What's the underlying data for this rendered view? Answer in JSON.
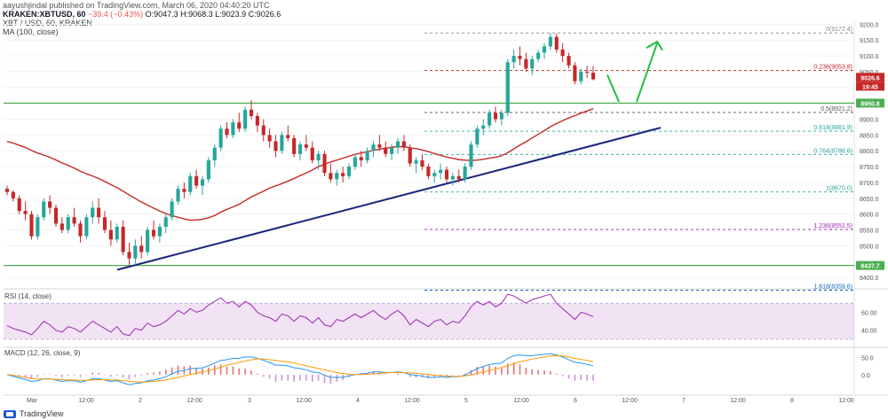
{
  "header": {
    "publisher": "aayushjindal published on TradingView.com, March 06, 2020 04:40:20 UTC",
    "symbol": "KRAKEN:XBTUSD, 60",
    "change": "−39.4 (−0.43%)",
    "ohlc": "O:9047.3 H:9068.3 L:9023.9 C:9026.6",
    "series_name": "XBT / USD, 60, KRAKEN",
    "ma_label": "MA (100, close)"
  },
  "rsi_label": "RSI (14, close)",
  "macd_label": "MACD (12, 26, close, 9)",
  "footer_brand": "TradingView",
  "colors": {
    "up": "#26a69a",
    "down": "#c62828",
    "ma": "#c62828",
    "trendline": "#1a237e",
    "support": "#4caf50",
    "rsi_line": "#9c27b0",
    "rsi_band": "#e1bee7",
    "macd_line": "#2196f3",
    "signal_line": "#ff9800",
    "arrow": "#1fbf3f"
  },
  "chart_data": {
    "type": "candlestick",
    "y_ticks": [
      "9200.0",
      "9150.0",
      "9100.0",
      "9050.0",
      "9000.0",
      "8900.0",
      "8850.0",
      "8800.0",
      "8750.0",
      "8700.0",
      "8650.0",
      "8600.0",
      "8550.0",
      "8500.0",
      "8400.0"
    ],
    "x_ticks": [
      "Mar",
      "12:00",
      "2",
      "12:00",
      "3",
      "12:00",
      "4",
      "12:00",
      "5",
      "12:00",
      "6",
      "12:00",
      "7",
      "12:00",
      "8",
      "12:00"
    ],
    "price_badges": [
      {
        "text": "8950.8",
        "color": "#4caf50",
        "value": 8950.8
      },
      {
        "text": "9026.6",
        "color": "#c62828",
        "value": 9026.6
      },
      {
        "text": "19:45",
        "color": "#c62828",
        "value": 9000
      },
      {
        "text": "8437.7",
        "color": "#4caf50",
        "value": 8437.7
      }
    ],
    "support_levels": [
      8950.8,
      8437.7
    ],
    "fib_levels": [
      {
        "label": "0(9172.4)",
        "value": 9172.4,
        "color": "#888888"
      },
      {
        "label": "0.236(9053.8)",
        "value": 9053.8,
        "color": "#c62828"
      },
      {
        "label": "0.5(8921.2)",
        "value": 8921.2,
        "color": "#555555"
      },
      {
        "label": "0.618(8861.9)",
        "value": 8861.9,
        "color": "#26a69a"
      },
      {
        "label": "0.764(8788.6)",
        "value": 8788.6,
        "color": "#26a69a"
      },
      {
        "label": "1(8670.0)",
        "value": 8670.0,
        "color": "#26a69a"
      },
      {
        "label": "1.236(8551.5)",
        "value": 8551.5,
        "color": "#9c27b0"
      },
      {
        "label": "1.618(8359.6)",
        "value": 8359.6,
        "color": "#1565c0"
      }
    ],
    "candles": [
      [
        8680,
        8690,
        8660,
        8670
      ],
      [
        8670,
        8675,
        8640,
        8650
      ],
      [
        8650,
        8660,
        8600,
        8610
      ],
      [
        8610,
        8640,
        8580,
        8600
      ],
      [
        8600,
        8610,
        8520,
        8530
      ],
      [
        8530,
        8600,
        8520,
        8590
      ],
      [
        8590,
        8650,
        8580,
        8640
      ],
      [
        8640,
        8660,
        8600,
        8620
      ],
      [
        8620,
        8630,
        8560,
        8570
      ],
      [
        8570,
        8590,
        8540,
        8550
      ],
      [
        8550,
        8600,
        8540,
        8590
      ],
      [
        8590,
        8620,
        8560,
        8570
      ],
      [
        8570,
        8580,
        8510,
        8530
      ],
      [
        8530,
        8600,
        8520,
        8590
      ],
      [
        8590,
        8640,
        8570,
        8620
      ],
      [
        8620,
        8650,
        8570,
        8590
      ],
      [
        8590,
        8610,
        8540,
        8550
      ],
      [
        8550,
        8580,
        8500,
        8520
      ],
      [
        8520,
        8570,
        8510,
        8560
      ],
      [
        8560,
        8580,
        8470,
        8480
      ],
      [
        8480,
        8510,
        8440,
        8460
      ],
      [
        8460,
        8520,
        8440,
        8500
      ],
      [
        8500,
        8530,
        8460,
        8480
      ],
      [
        8480,
        8560,
        8470,
        8550
      ],
      [
        8550,
        8580,
        8520,
        8530
      ],
      [
        8530,
        8570,
        8510,
        8560
      ],
      [
        8560,
        8600,
        8540,
        8590
      ],
      [
        8590,
        8650,
        8580,
        8640
      ],
      [
        8640,
        8690,
        8630,
        8680
      ],
      [
        8680,
        8700,
        8650,
        8670
      ],
      [
        8670,
        8730,
        8660,
        8720
      ],
      [
        8720,
        8740,
        8680,
        8690
      ],
      [
        8690,
        8720,
        8660,
        8710
      ],
      [
        8710,
        8780,
        8700,
        8770
      ],
      [
        8770,
        8820,
        8750,
        8810
      ],
      [
        8810,
        8880,
        8800,
        8870
      ],
      [
        8870,
        8890,
        8840,
        8850
      ],
      [
        8850,
        8900,
        8840,
        8890
      ],
      [
        8890,
        8920,
        8860,
        8870
      ],
      [
        8870,
        8940,
        8860,
        8930
      ],
      [
        8930,
        8960,
        8900,
        8910
      ],
      [
        8910,
        8920,
        8860,
        8880
      ],
      [
        8880,
        8900,
        8830,
        8850
      ],
      [
        8850,
        8870,
        8810,
        8830
      ],
      [
        8830,
        8850,
        8780,
        8800
      ],
      [
        8800,
        8860,
        8790,
        8850
      ],
      [
        8850,
        8880,
        8830,
        8840
      ],
      [
        8840,
        8850,
        8780,
        8790
      ],
      [
        8790,
        8830,
        8770,
        8820
      ],
      [
        8820,
        8850,
        8800,
        8810
      ],
      [
        8810,
        8830,
        8760,
        8770
      ],
      [
        8770,
        8800,
        8740,
        8790
      ],
      [
        8790,
        8800,
        8720,
        8730
      ],
      [
        8730,
        8760,
        8700,
        8710
      ],
      [
        8710,
        8740,
        8690,
        8730
      ],
      [
        8730,
        8750,
        8700,
        8720
      ],
      [
        8720,
        8760,
        8710,
        8750
      ],
      [
        8750,
        8790,
        8740,
        8780
      ],
      [
        8780,
        8800,
        8750,
        8770
      ],
      [
        8770,
        8810,
        8760,
        8800
      ],
      [
        8800,
        8830,
        8780,
        8820
      ],
      [
        8820,
        8850,
        8800,
        8810
      ],
      [
        8810,
        8830,
        8780,
        8790
      ],
      [
        8790,
        8820,
        8770,
        8810
      ],
      [
        8810,
        8840,
        8790,
        8830
      ],
      [
        8830,
        8850,
        8800,
        8810
      ],
      [
        8810,
        8820,
        8750,
        8760
      ],
      [
        8760,
        8780,
        8730,
        8770
      ],
      [
        8770,
        8790,
        8740,
        8750
      ],
      [
        8750,
        8760,
        8710,
        8720
      ],
      [
        8720,
        8740,
        8700,
        8730
      ],
      [
        8730,
        8760,
        8710,
        8740
      ],
      [
        8740,
        8750,
        8700,
        8710
      ],
      [
        8710,
        8730,
        8690,
        8720
      ],
      [
        8720,
        8740,
        8700,
        8710
      ],
      [
        8710,
        8760,
        8700,
        8750
      ],
      [
        8750,
        8830,
        8740,
        8820
      ],
      [
        8820,
        8880,
        8810,
        8870
      ],
      [
        8870,
        8900,
        8850,
        8880
      ],
      [
        8880,
        8930,
        8870,
        8920
      ],
      [
        8920,
        8940,
        8890,
        8900
      ],
      [
        8900,
        8930,
        8880,
        8920
      ],
      [
        8920,
        9090,
        8910,
        9080
      ],
      [
        9080,
        9120,
        9060,
        9100
      ],
      [
        9100,
        9130,
        9070,
        9090
      ],
      [
        9090,
        9110,
        9050,
        9060
      ],
      [
        9060,
        9100,
        9040,
        9090
      ],
      [
        9090,
        9120,
        9080,
        9110
      ],
      [
        9110,
        9140,
        9090,
        9130
      ],
      [
        9130,
        9172,
        9120,
        9160
      ],
      [
        9160,
        9170,
        9110,
        9120
      ],
      [
        9120,
        9140,
        9080,
        9100
      ],
      [
        9100,
        9110,
        9060,
        9070
      ],
      [
        9070,
        9080,
        9010,
        9020
      ],
      [
        9020,
        9060,
        9010,
        9050
      ],
      [
        9050,
        9068,
        9030,
        9047
      ],
      [
        9047,
        9068,
        9023,
        9026
      ]
    ],
    "rsi": [
      45,
      42,
      40,
      38,
      35,
      42,
      50,
      46,
      40,
      38,
      44,
      42,
      38,
      44,
      50,
      46,
      42,
      38,
      44,
      36,
      34,
      42,
      40,
      48,
      44,
      46,
      50,
      56,
      62,
      58,
      64,
      60,
      62,
      68,
      72,
      76,
      70,
      72,
      66,
      72,
      68,
      60,
      56,
      54,
      50,
      58,
      56,
      50,
      56,
      54,
      48,
      54,
      46,
      44,
      52,
      50,
      54,
      58,
      54,
      58,
      62,
      56,
      52,
      58,
      62,
      56,
      46,
      52,
      48,
      44,
      50,
      52,
      46,
      50,
      48,
      56,
      66,
      72,
      68,
      72,
      66,
      70,
      80,
      78,
      74,
      70,
      74,
      76,
      78,
      80,
      70,
      64,
      58,
      52,
      60,
      58,
      55
    ],
    "macd": [
      0,
      -5,
      -10,
      -14,
      -20,
      -18,
      -12,
      -12,
      -16,
      -20,
      -18,
      -18,
      -22,
      -18,
      -12,
      -12,
      -16,
      -20,
      -18,
      -24,
      -30,
      -26,
      -24,
      -18,
      -16,
      -12,
      -6,
      2,
      10,
      12,
      18,
      18,
      20,
      26,
      34,
      42,
      44,
      48,
      48,
      52,
      52,
      48,
      42,
      36,
      28,
      28,
      26,
      20,
      18,
      14,
      8,
      6,
      -2,
      -8,
      -8,
      -8,
      -4,
      0,
      2,
      4,
      8,
      8,
      6,
      6,
      8,
      6,
      0,
      -2,
      -4,
      -8,
      -8,
      -6,
      -8,
      -6,
      -6,
      -2,
      8,
      18,
      24,
      30,
      32,
      34,
      48,
      56,
      58,
      56,
      56,
      58,
      60,
      62,
      58,
      52,
      44,
      36,
      34,
      30,
      26
    ],
    "signal": [
      0,
      -2,
      -5,
      -8,
      -11,
      -13,
      -13,
      -13,
      -14,
      -15,
      -16,
      -16,
      -17,
      -17,
      -16,
      -15,
      -15,
      -16,
      -16,
      -18,
      -20,
      -21,
      -22,
      -21,
      -20,
      -18,
      -16,
      -12,
      -8,
      -4,
      0,
      4,
      8,
      12,
      16,
      22,
      28,
      32,
      36,
      40,
      44,
      46,
      46,
      44,
      42,
      40,
      38,
      34,
      30,
      26,
      22,
      18,
      14,
      10,
      6,
      3,
      1,
      0,
      0,
      1,
      2,
      4,
      5,
      6,
      6,
      6,
      5,
      4,
      2,
      0,
      -2,
      -3,
      -4,
      -5,
      -5,
      -4,
      -1,
      3,
      8,
      12,
      17,
      21,
      26,
      32,
      38,
      42,
      46,
      49,
      52,
      55,
      56,
      55,
      52,
      48,
      45,
      42,
      38
    ]
  }
}
